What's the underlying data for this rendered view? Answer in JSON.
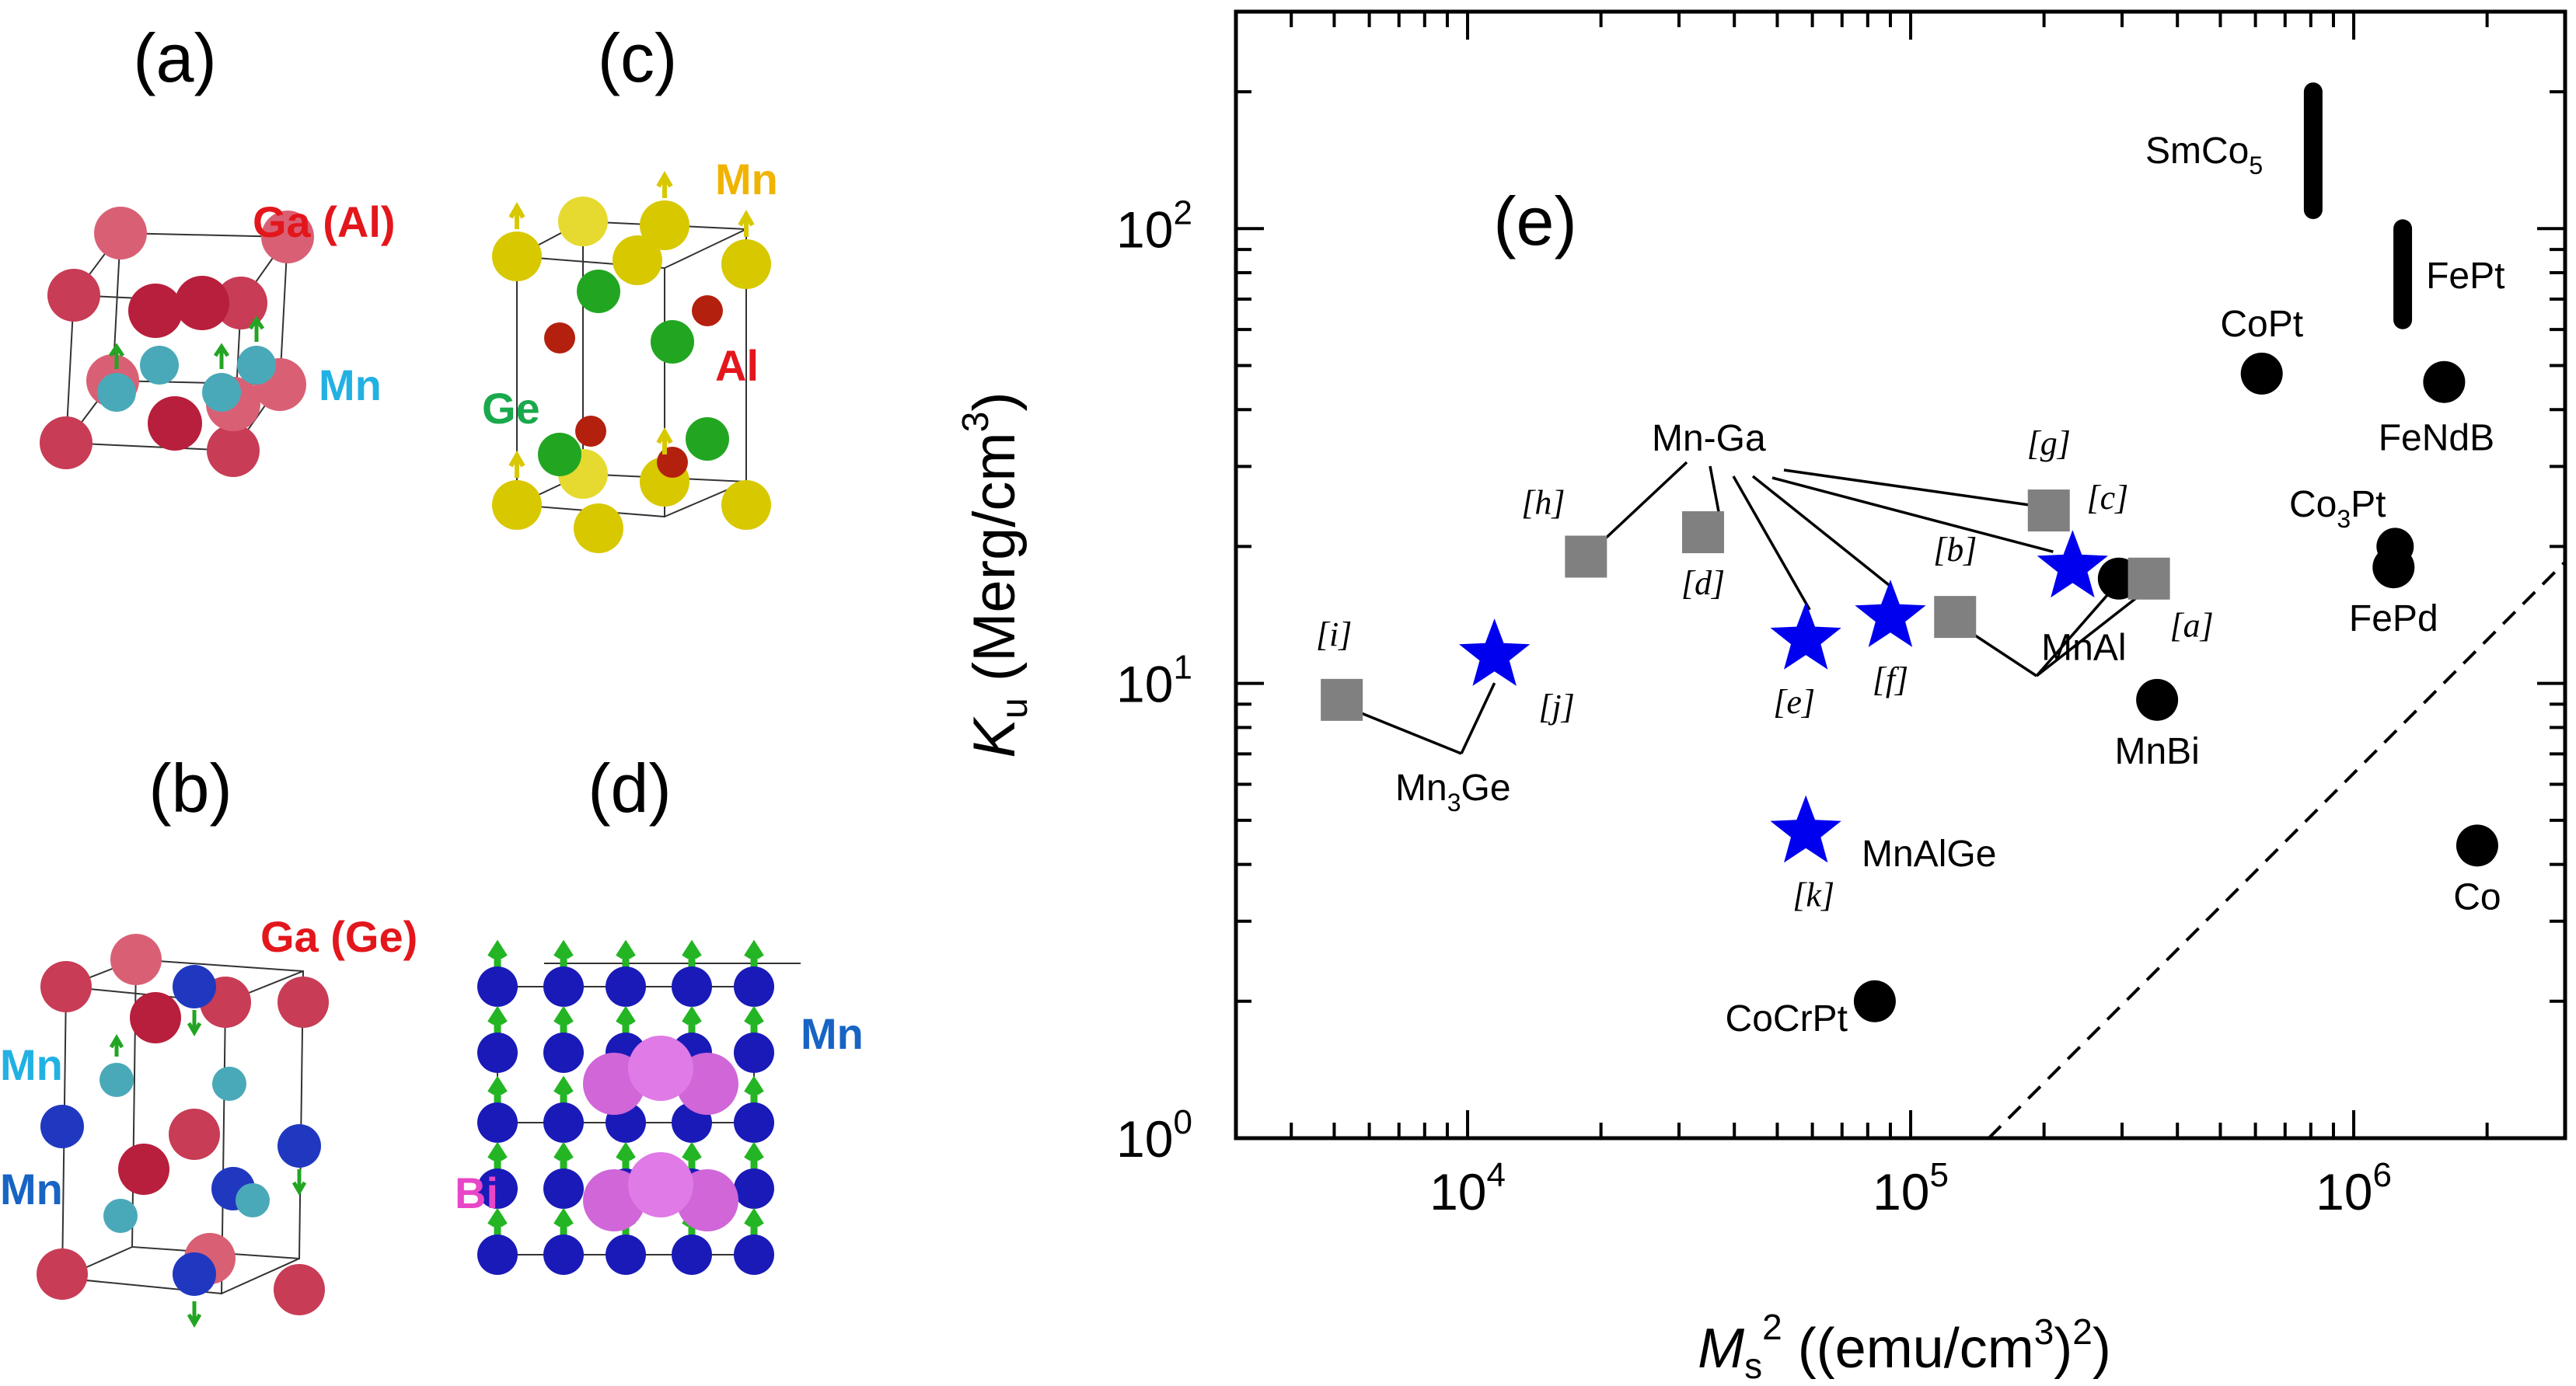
{
  "panels": {
    "a": {
      "label": "(a)",
      "atoms": [
        {
          "text": "Ga (Al)",
          "color": "#e3161c"
        },
        {
          "text": "Mn",
          "color": "#22b1e3"
        }
      ]
    },
    "b": {
      "label": "(b)",
      "atoms": [
        {
          "text": "Ga (Ge)",
          "color": "#e3161c"
        },
        {
          "text": "Mn",
          "color": "#22b1e3"
        },
        {
          "text": "Mn",
          "color": "#1764c4"
        }
      ]
    },
    "c": {
      "label": "(c)",
      "atoms": [
        {
          "text": "Mn",
          "color": "#f0b400"
        },
        {
          "text": "Ge",
          "color": "#19a94c"
        },
        {
          "text": "Al",
          "color": "#e3161c"
        }
      ]
    },
    "d": {
      "label": "(d)",
      "atoms": [
        {
          "text": "Mn",
          "color": "#1764c4"
        },
        {
          "text": "Bi",
          "color": "#e846c8"
        }
      ]
    }
  },
  "chart_data": {
    "type": "scatter",
    "panel_label": "(e)",
    "xscale": "log",
    "yscale": "log",
    "xlim": [
      3000,
      3000000
    ],
    "ylim": [
      1,
      300
    ],
    "x_ticks": [
      {
        "value": 10000,
        "base": "10",
        "exp": "4"
      },
      {
        "value": 100000,
        "base": "10",
        "exp": "5"
      },
      {
        "value": 1000000,
        "base": "10",
        "exp": "6"
      }
    ],
    "y_ticks": [
      {
        "value": 1,
        "base": "10",
        "exp": "0"
      },
      {
        "value": 10,
        "base": "10",
        "exp": "1"
      },
      {
        "value": 100,
        "base": "10",
        "exp": "2"
      }
    ],
    "xlabel": {
      "var": "M",
      "sub": "s",
      "sup": "2",
      "rest": " ((emu/cm",
      "unit_sup": "3",
      "end": ")",
      "end_sup": "2",
      "close": ")"
    },
    "ylabel": {
      "var": "K",
      "sub": "u",
      "rest": " (Merg/cm",
      "unit_sup": "3",
      "close": ")"
    },
    "colors": {
      "reference": "#000000",
      "experiment": "#808080",
      "calculated": "#0000ee"
    },
    "reference_points": [
      {
        "label": "CoPt",
        "x": 620000,
        "y": 48
      },
      {
        "label": "FeNdB",
        "x": 1600000,
        "y": 46
      },
      {
        "label": "FePd",
        "x": 1230000,
        "y": 18
      },
      {
        "label": "MnBi",
        "x": 360000,
        "y": 9.2
      },
      {
        "label": "Co",
        "x": 1900000,
        "y": 4.4
      },
      {
        "label": "CoCrPt",
        "x": 83000,
        "y": 2.0
      },
      {
        "label": "MnAl",
        "x": 295000,
        "y": 17
      }
    ],
    "reference_ranges": [
      {
        "label": "SmCo",
        "sub": "5",
        "x": 810000,
        "y_low": 110,
        "y_high": 200
      },
      {
        "label": "FePt",
        "x": 1290000,
        "y_low": 63,
        "y_high": 100
      }
    ],
    "co3pt": {
      "label": "Co",
      "sub": "3",
      "rest": "Pt",
      "x": 1240000,
      "y": 20
    },
    "experiment_points": [
      {
        "label": "[i]",
        "x": 5200,
        "y": 9.2
      },
      {
        "label": "[h]",
        "x": 18500,
        "y": 19
      },
      {
        "label": "[d]",
        "x": 34000,
        "y": 21.5
      },
      {
        "label": "[b]",
        "x": 126000,
        "y": 14
      },
      {
        "label": "[g]",
        "x": 205000,
        "y": 24
      },
      {
        "label": "[a]",
        "x": 345000,
        "y": 17
      }
    ],
    "calculated_points": [
      {
        "label": "[j]",
        "x": 11500,
        "y": 11.5
      },
      {
        "label": "[e]",
        "x": 58000,
        "y": 12.5
      },
      {
        "label": "[f]",
        "x": 90000,
        "y": 14
      },
      {
        "label": "[c]",
        "x": 232000,
        "y": 18
      },
      {
        "label": "[k]",
        "x": 58000,
        "y": 4.7
      }
    ],
    "group_labels": [
      {
        "text": "Mn-Ga"
      },
      {
        "text": "MnAlGe"
      },
      {
        "text": "Mn",
        "sub": "3",
        "rest": "Ge"
      }
    ],
    "reference_line": {
      "style": "dashed",
      "from": [
        150000,
        1
      ],
      "to": [
        3000000,
        18.5
      ]
    }
  }
}
